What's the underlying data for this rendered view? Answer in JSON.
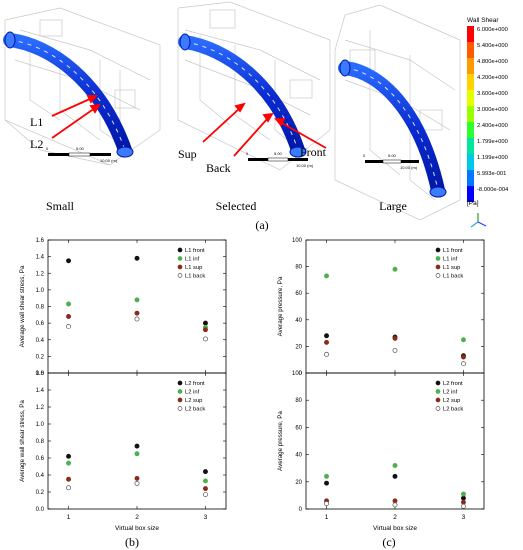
{
  "panel_a": {
    "size_labels": [
      "Small",
      "Selected",
      "Large"
    ],
    "caption": "(a)",
    "anno_small": [
      "L1",
      "L2"
    ],
    "anno_selected": [
      "Sup",
      "Back",
      "Front"
    ],
    "scale_small": [
      "0",
      "5.00",
      "10.00 (m)"
    ],
    "scale_selected": [
      "0",
      "5.00",
      "10.00 (m)"
    ],
    "scale_large": [
      "0",
      "5.00",
      "10.00 (m)"
    ],
    "legend": {
      "title": "Wall Shear",
      "values": [
        "6.000e+000",
        "5.400e+000",
        "4.800e+000",
        "4.200e+000",
        "3.600e+000",
        "3.000e+000",
        "2.400e+000",
        "1.799e+000",
        "1.199e+000",
        "5.993e-001",
        "-8.000e-004"
      ],
      "unit": "[Pa]",
      "colors": [
        "#ff0000",
        "#ff5a00",
        "#ff9900",
        "#ffd200",
        "#e6ff00",
        "#9cff00",
        "#2eff2e",
        "#00e6a0",
        "#00c8e6",
        "#0078ff",
        "#0000ff"
      ]
    }
  },
  "chart_data": [
    {
      "type": "scatter",
      "panel": "b-top",
      "ylabel": "Average wall shear stress, Pa",
      "ylim": [
        0,
        1.6
      ],
      "yticks": [
        "0.0",
        "0.2",
        "0.4",
        "0.6",
        "0.8",
        "1.0",
        "1.2",
        "1.4",
        "1.6"
      ],
      "x": [
        1,
        2,
        3
      ],
      "series": [
        {
          "name": "L1 front",
          "color": "#111111",
          "values": [
            1.35,
            1.38,
            0.6
          ]
        },
        {
          "name": "L1 inf",
          "color": "#4caf50",
          "values": [
            0.83,
            0.88,
            0.55
          ]
        },
        {
          "name": "L1 sup",
          "color": "#8b2a1a",
          "values": [
            0.68,
            0.72,
            0.52
          ]
        },
        {
          "name": "L1 back",
          "color": "#ffffff",
          "values": [
            0.56,
            0.65,
            0.41
          ]
        }
      ],
      "legend_position": "top-right"
    },
    {
      "type": "scatter",
      "panel": "b-bottom",
      "ylabel": "Average wall shear stress, Pa",
      "xlabel": "Virtual box size",
      "ylim": [
        0,
        1.6
      ],
      "yticks": [
        "0.0",
        "0.2",
        "0.4",
        "0.6",
        "0.8",
        "1.0",
        "1.2",
        "1.4",
        "1.6"
      ],
      "x": [
        1,
        2,
        3
      ],
      "xticks": [
        "1",
        "2",
        "3"
      ],
      "series": [
        {
          "name": "L2 front",
          "color": "#111111",
          "values": [
            0.62,
            0.74,
            0.44
          ]
        },
        {
          "name": "L2 inf",
          "color": "#4caf50",
          "values": [
            0.54,
            0.65,
            0.33
          ]
        },
        {
          "name": "L2 sup",
          "color": "#8b2a1a",
          "values": [
            0.35,
            0.36,
            0.24
          ]
        },
        {
          "name": "L2 back",
          "color": "#ffffff",
          "values": [
            0.25,
            0.3,
            0.17
          ]
        }
      ],
      "legend_position": "top-right"
    },
    {
      "type": "scatter",
      "panel": "c-top",
      "ylabel": "Average pressure, Pa",
      "ylim": [
        0,
        100
      ],
      "yticks": [
        "0",
        "20",
        "40",
        "60",
        "80",
        "100"
      ],
      "x": [
        1,
        2,
        3
      ],
      "series": [
        {
          "name": "L1 front",
          "color": "#111111",
          "values": [
            28,
            27,
            13
          ]
        },
        {
          "name": "L1 inf",
          "color": "#4caf50",
          "values": [
            73,
            78,
            25
          ]
        },
        {
          "name": "L1 sup",
          "color": "#8b2a1a",
          "values": [
            23,
            26,
            12
          ]
        },
        {
          "name": "L1 back",
          "color": "#ffffff",
          "values": [
            14,
            17,
            7
          ]
        }
      ],
      "legend_position": "top-right"
    },
    {
      "type": "scatter",
      "panel": "c-bottom",
      "ylabel": "Average pressure, Pa",
      "xlabel": "Virtual box size",
      "ylim": [
        0,
        100
      ],
      "yticks": [
        "0",
        "20",
        "40",
        "60",
        "80",
        "100"
      ],
      "x": [
        1,
        2,
        3
      ],
      "xticks": [
        "1",
        "2",
        "3"
      ],
      "series": [
        {
          "name": "L2 front",
          "color": "#111111",
          "values": [
            19,
            24,
            8
          ]
        },
        {
          "name": "L2 inf",
          "color": "#4caf50",
          "values": [
            24,
            32,
            11
          ]
        },
        {
          "name": "L2 sup",
          "color": "#8b2a1a",
          "values": [
            6,
            6,
            5
          ]
        },
        {
          "name": "L2 back",
          "color": "#ffffff",
          "values": [
            4,
            3,
            2
          ]
        }
      ],
      "legend_position": "top-right"
    }
  ],
  "captions": {
    "b": "(b)",
    "c": "(c)"
  }
}
